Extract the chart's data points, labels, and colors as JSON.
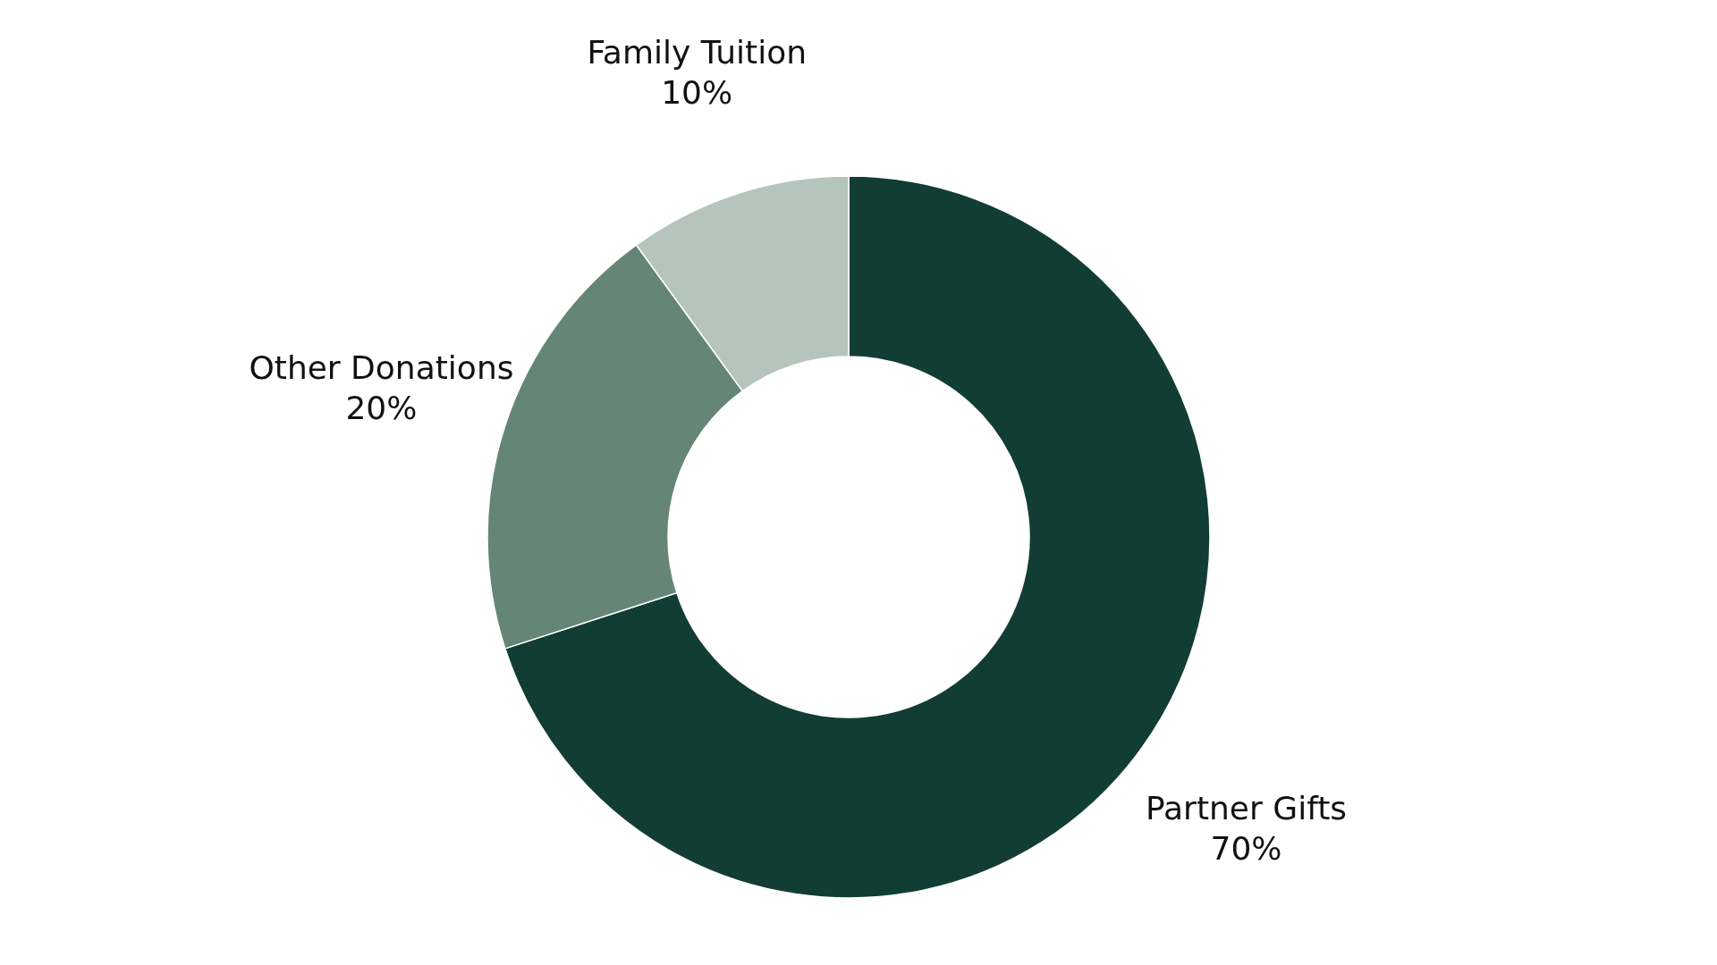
{
  "chart_data": {
    "type": "donut",
    "categories": [
      "Partner Gifts",
      "Other Donations",
      "Family Tuition"
    ],
    "values": [
      70,
      20,
      10
    ],
    "value_labels": [
      "70%",
      "20%",
      "10%"
    ],
    "colors": [
      "#123d35",
      "#658676",
      "#b5c4bc"
    ],
    "legend": false
  }
}
